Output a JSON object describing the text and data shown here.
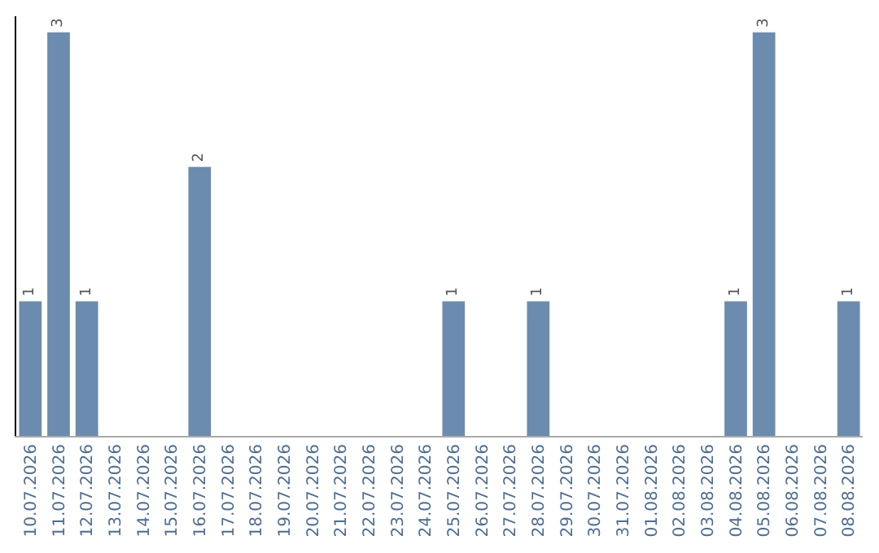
{
  "chart_data": {
    "type": "bar",
    "categories": [
      "10.07.2026",
      "11.07.2026",
      "12.07.2026",
      "13.07.2026",
      "14.07.2026",
      "15.07.2026",
      "16.07.2026",
      "17.07.2026",
      "18.07.2026",
      "19.07.2026",
      "20.07.2026",
      "21.07.2026",
      "22.07.2026",
      "23.07.2026",
      "24.07.2026",
      "25.07.2026",
      "26.07.2026",
      "27.07.2026",
      "28.07.2026",
      "29.07.2026",
      "30.07.2026",
      "31.07.2026",
      "01.08.2026",
      "02.08.2026",
      "03.08.2026",
      "04.08.2026",
      "05.08.2026",
      "06.08.2026",
      "07.08.2026",
      "08.08.2026"
    ],
    "values": [
      1,
      3,
      1,
      0,
      0,
      0,
      2,
      0,
      0,
      0,
      0,
      0,
      0,
      0,
      0,
      1,
      0,
      0,
      1,
      0,
      0,
      0,
      0,
      0,
      0,
      1,
      3,
      0,
      0,
      1
    ],
    "value_labels": [
      "1",
      "3",
      "1",
      null,
      null,
      null,
      "2",
      null,
      null,
      null,
      null,
      null,
      null,
      null,
      null,
      "1",
      null,
      null,
      "1",
      null,
      null,
      null,
      null,
      null,
      null,
      "1",
      "3",
      null,
      null,
      "1"
    ],
    "color": "#6b8cae",
    "ylim": [
      0,
      3.12
    ],
    "tick_labels": "x"
  }
}
